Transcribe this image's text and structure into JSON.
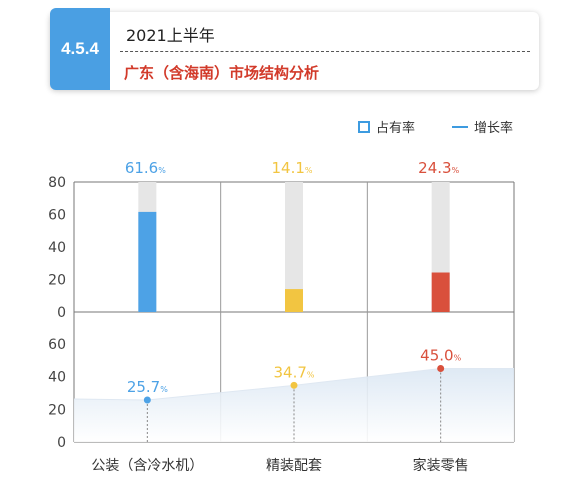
{
  "header": {
    "section_number": "4.5.4",
    "period": "2021上半年",
    "subtitle": "广东（含海南）市场结构分析"
  },
  "legend": {
    "share_label": "占有率",
    "growth_label": "增长率"
  },
  "chart_data": {
    "type": "bar",
    "categories": [
      "公装（含冷水机）",
      "精装配套",
      "家装零售"
    ],
    "colors": [
      "#4da2e6",
      "#f2c541",
      "#d9503c"
    ],
    "top_panel": {
      "series": [
        {
          "name": "占有率",
          "values": [
            61.6,
            14.1,
            24.3
          ]
        }
      ],
      "value_labels": [
        "61.6",
        "14.1",
        "24.3"
      ],
      "unit": "%",
      "ylim": [
        0,
        80
      ],
      "yticks": [
        "0",
        "20",
        "40",
        "60",
        "80"
      ]
    },
    "bottom_panel": {
      "type": "line",
      "series": [
        {
          "name": "增长率",
          "values": [
            25.7,
            34.7,
            45.0
          ]
        }
      ],
      "value_labels": [
        "25.7",
        "34.7",
        "45.0"
      ],
      "unit": "%",
      "ylim": [
        0,
        60
      ],
      "yticks": [
        "0",
        "20",
        "40",
        "60"
      ]
    }
  }
}
